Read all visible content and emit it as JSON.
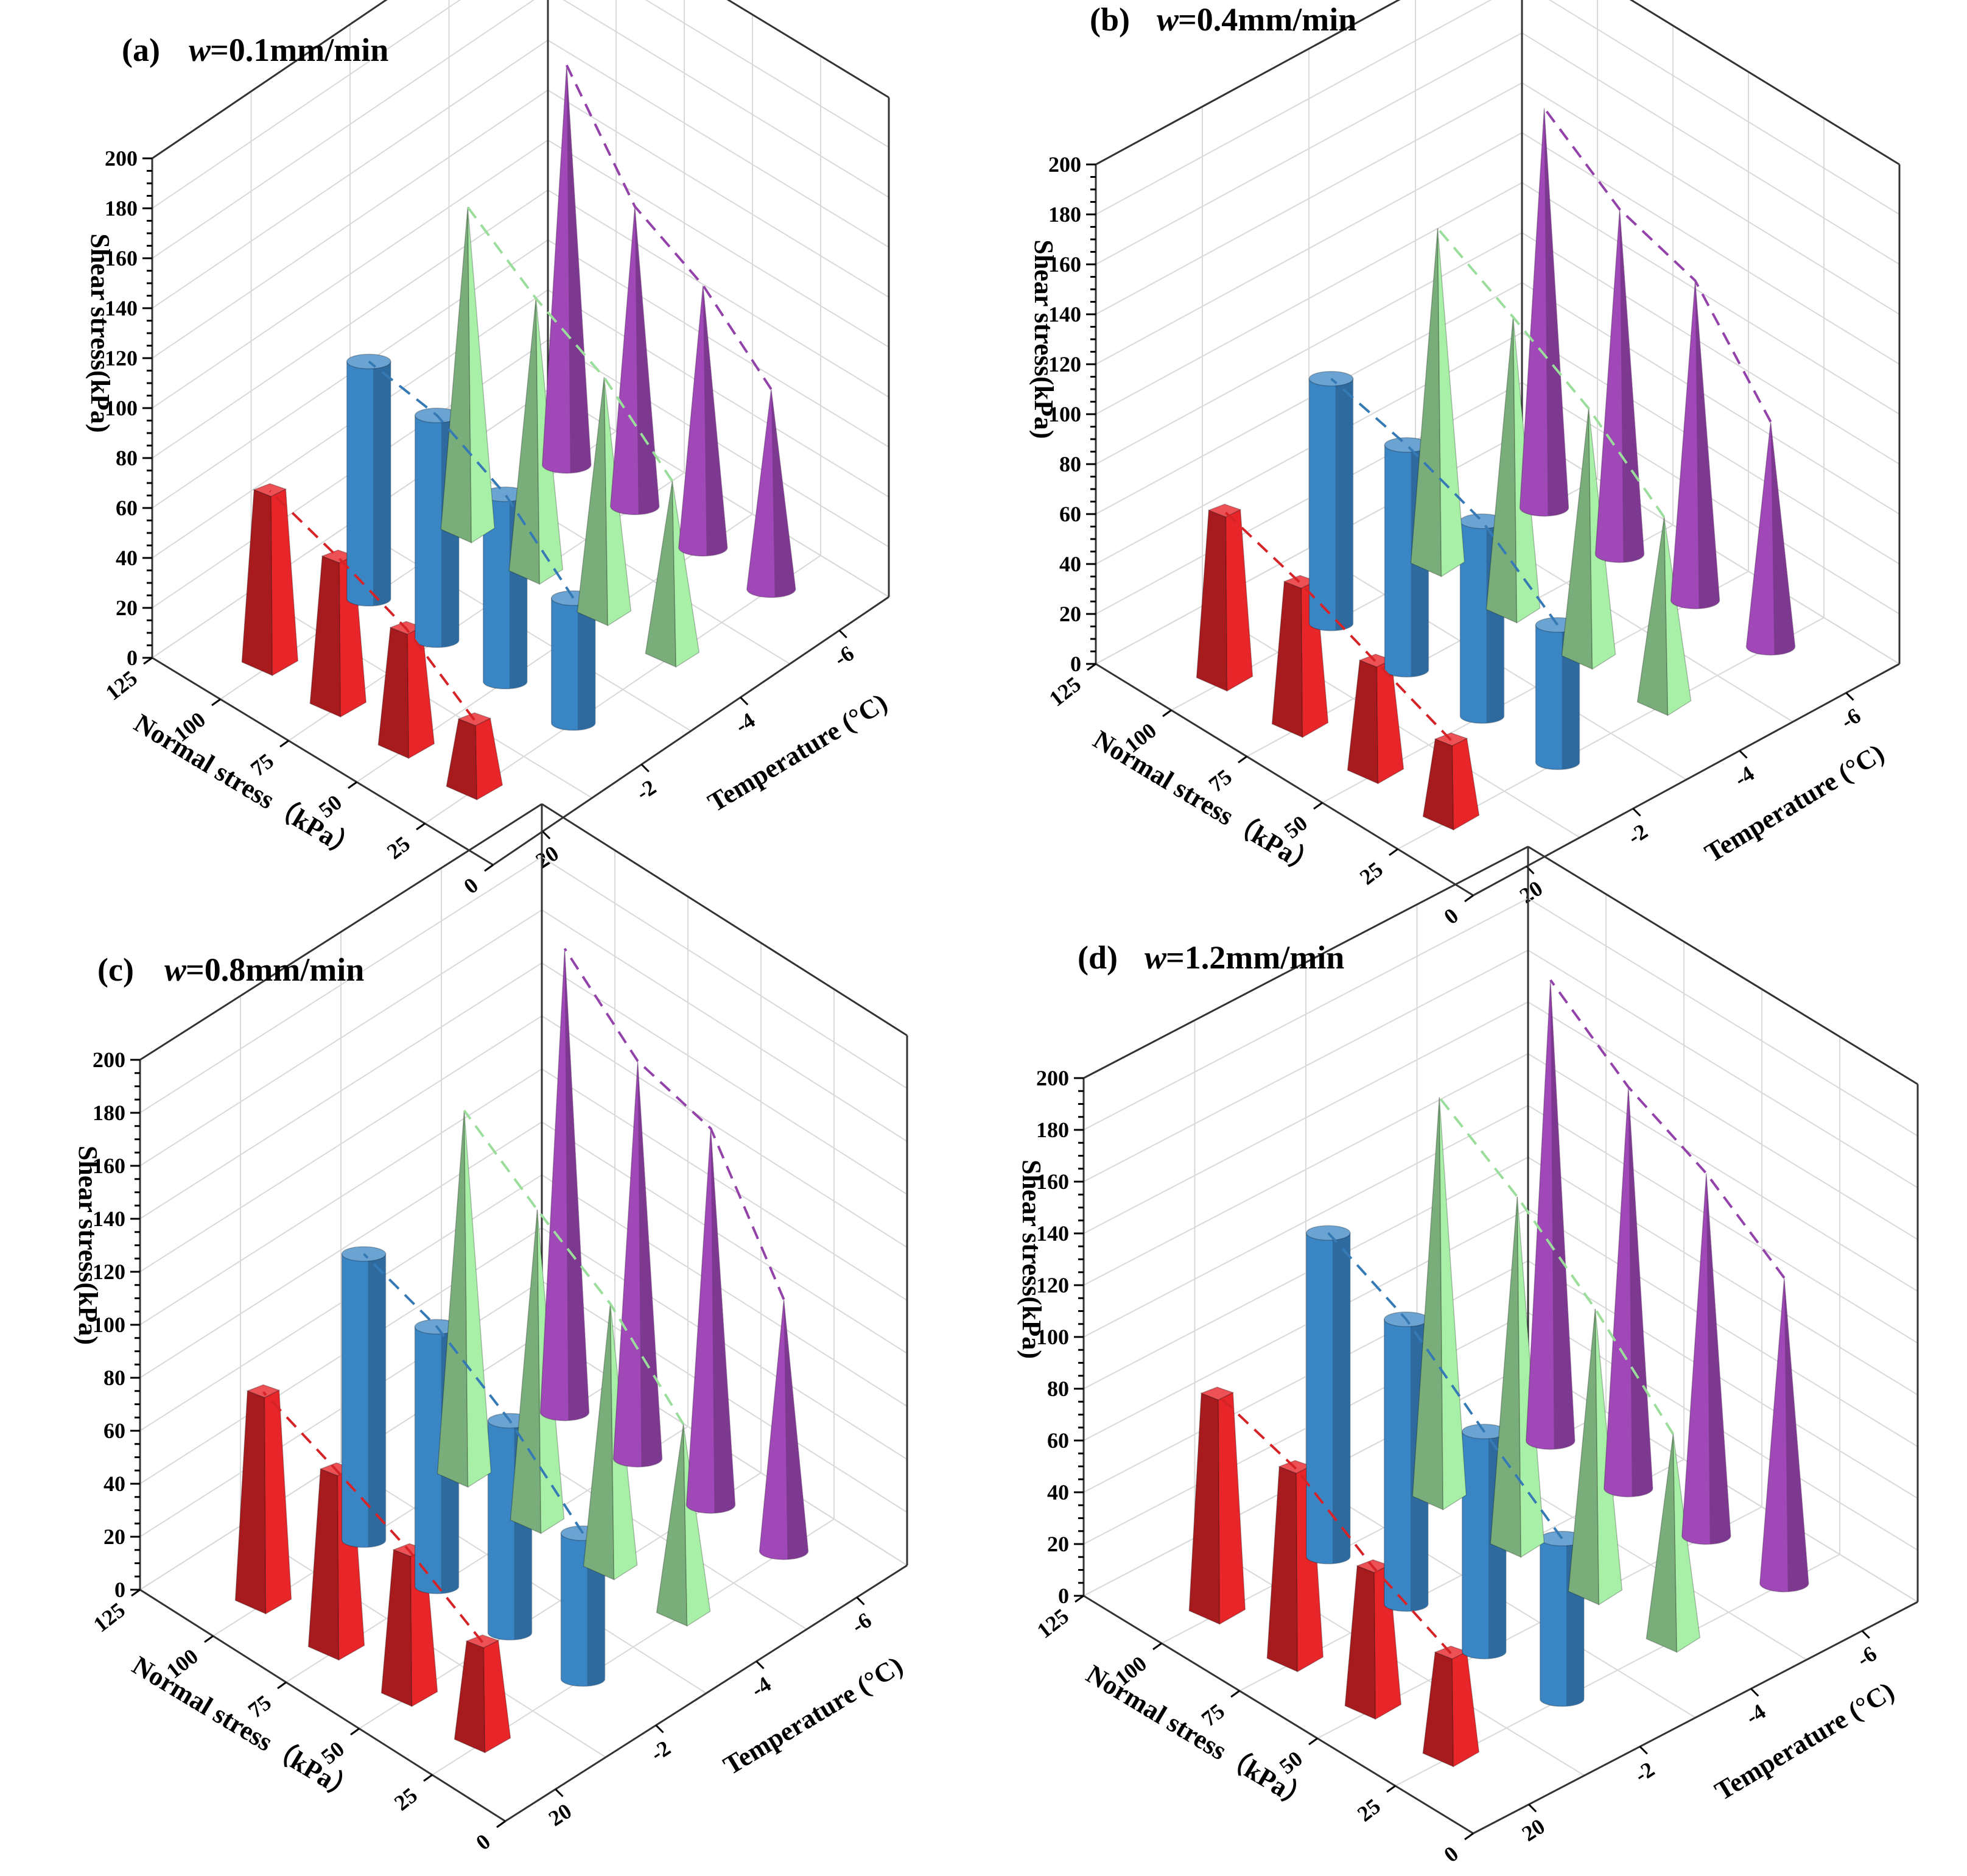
{
  "chart_data": [
    {
      "panel": "a",
      "label": "(a)",
      "title_var": "w",
      "title_value": "=0.1mm/min",
      "type": "bar3d",
      "zlabel": "Shear stress(kPa)",
      "xlabel": "Normal stress（kPa）",
      "ylabel": "Temperature (°C)",
      "z_ticks": [
        "0",
        "20",
        "40",
        "60",
        "80",
        "100",
        "120",
        "140",
        "160",
        "180",
        "200"
      ],
      "x_ticks": [
        "0",
        "25",
        "50",
        "75",
        "100",
        "125"
      ],
      "y_ticks": [
        "20",
        "-2",
        "-4",
        "-6"
      ],
      "zlim": [
        0,
        200
      ],
      "normal_stress": [
        25,
        50,
        75,
        100
      ],
      "temperature": [
        20,
        -2,
        -4,
        -6
      ],
      "series": [
        {
          "temperature": 20,
          "shape": "square-frustum",
          "color": "#e8262a",
          "values": [
            28,
            48,
            60,
            70
          ]
        },
        {
          "temperature": -2,
          "shape": "cylinder",
          "color": "#3a85c4",
          "values": [
            50,
            75,
            90,
            95
          ]
        },
        {
          "temperature": -4,
          "shape": "pyramid",
          "color": "#a8f0a8",
          "values": [
            70,
            95,
            110,
            130
          ]
        },
        {
          "temperature": -6,
          "shape": "cone",
          "color": "#a048b8",
          "values": [
            80,
            105,
            120,
            160
          ]
        }
      ]
    },
    {
      "panel": "b",
      "label": "(b)",
      "title_var": "w",
      "title_value": "=0.4mm/min",
      "type": "bar3d",
      "zlabel": "Shear stress(kPa)",
      "xlabel": "Normal stress（kPa）",
      "ylabel": "Temperature (°C)",
      "z_ticks": [
        "0",
        "20",
        "40",
        "60",
        "80",
        "100",
        "120",
        "140",
        "160",
        "180",
        "200"
      ],
      "x_ticks": [
        "0",
        "25",
        "50",
        "75",
        "100",
        "125"
      ],
      "y_ticks": [
        "20",
        "-2",
        "-4",
        "-6"
      ],
      "zlim": [
        0,
        200
      ],
      "normal_stress": [
        25,
        50,
        75,
        100
      ],
      "temperature": [
        20,
        -2,
        -4,
        -6
      ],
      "series": [
        {
          "temperature": 20,
          "shape": "square-frustum",
          "color": "#e8262a",
          "values": [
            32,
            45,
            58,
            68
          ]
        },
        {
          "temperature": -2,
          "shape": "cylinder",
          "color": "#3a85c4",
          "values": [
            55,
            78,
            90,
            98
          ]
        },
        {
          "temperature": -4,
          "shape": "pyramid",
          "color": "#a8f0a8",
          "values": [
            75,
            100,
            118,
            135
          ]
        },
        {
          "temperature": -6,
          "shape": "cone",
          "color": "#a048b8",
          "values": [
            90,
            128,
            138,
            160
          ]
        }
      ]
    },
    {
      "panel": "c",
      "label": "(c)",
      "title_var": "w",
      "title_value": "=0.8mm/min",
      "type": "bar3d",
      "zlabel": "Shear stress(kPa)",
      "xlabel": "Normal stress（kPa）",
      "ylabel": "Temperature (°C)",
      "z_ticks": [
        "0",
        "20",
        "40",
        "60",
        "80",
        "100",
        "120",
        "140",
        "160",
        "180",
        "200"
      ],
      "x_ticks": [
        "0",
        "25",
        "50",
        "75",
        "100",
        "125"
      ],
      "y_ticks": [
        "20",
        "-2",
        "-4",
        "-6"
      ],
      "zlim": [
        0,
        200
      ],
      "normal_stress": [
        25,
        50,
        75,
        100
      ],
      "temperature": [
        20,
        -2,
        -4,
        -6
      ],
      "series": [
        {
          "temperature": 20,
          "shape": "square-frustum",
          "color": "#e8262a",
          "values": [
            38,
            55,
            68,
            80
          ]
        },
        {
          "temperature": -2,
          "shape": "cylinder",
          "color": "#3a85c4",
          "values": [
            55,
            80,
            98,
            108
          ]
        },
        {
          "temperature": -4,
          "shape": "pyramid",
          "color": "#a8f0a8",
          "values": [
            72,
            100,
            118,
            138
          ]
        },
        {
          "temperature": -6,
          "shape": "cone",
          "color": "#a048b8",
          "values": [
            95,
            142,
            150,
            175
          ]
        }
      ]
    },
    {
      "panel": "d",
      "label": "(d)",
      "title_var": "w",
      "title_value": "=1.2mm/min",
      "type": "bar3d",
      "zlabel": "Shear stress(kPa)",
      "xlabel": "Normal stress（kPa）",
      "ylabel": "Temperature (°C)",
      "z_ticks": [
        "0",
        "20",
        "40",
        "60",
        "80",
        "100",
        "120",
        "140",
        "160",
        "180",
        "200"
      ],
      "x_ticks": [
        "0",
        "25",
        "50",
        "75",
        "100",
        "125"
      ],
      "y_ticks": [
        "20",
        "-2",
        "-4",
        "-6"
      ],
      "zlim": [
        0,
        200
      ],
      "normal_stress": [
        25,
        50,
        75,
        100
      ],
      "temperature": [
        20,
        -2,
        -4,
        -6
      ],
      "series": [
        {
          "temperature": 20,
          "shape": "square-frustum",
          "color": "#e8262a",
          "values": [
            40,
            55,
            75,
            85
          ]
        },
        {
          "temperature": -2,
          "shape": "cylinder",
          "color": "#3a85c4",
          "values": [
            62,
            85,
            110,
            125
          ]
        },
        {
          "temperature": -4,
          "shape": "pyramid",
          "color": "#a8f0a8",
          "values": [
            80,
            110,
            135,
            155
          ]
        },
        {
          "temperature": -6,
          "shape": "cone",
          "color": "#a048b8",
          "values": [
            118,
            140,
            155,
            178
          ]
        }
      ]
    }
  ]
}
